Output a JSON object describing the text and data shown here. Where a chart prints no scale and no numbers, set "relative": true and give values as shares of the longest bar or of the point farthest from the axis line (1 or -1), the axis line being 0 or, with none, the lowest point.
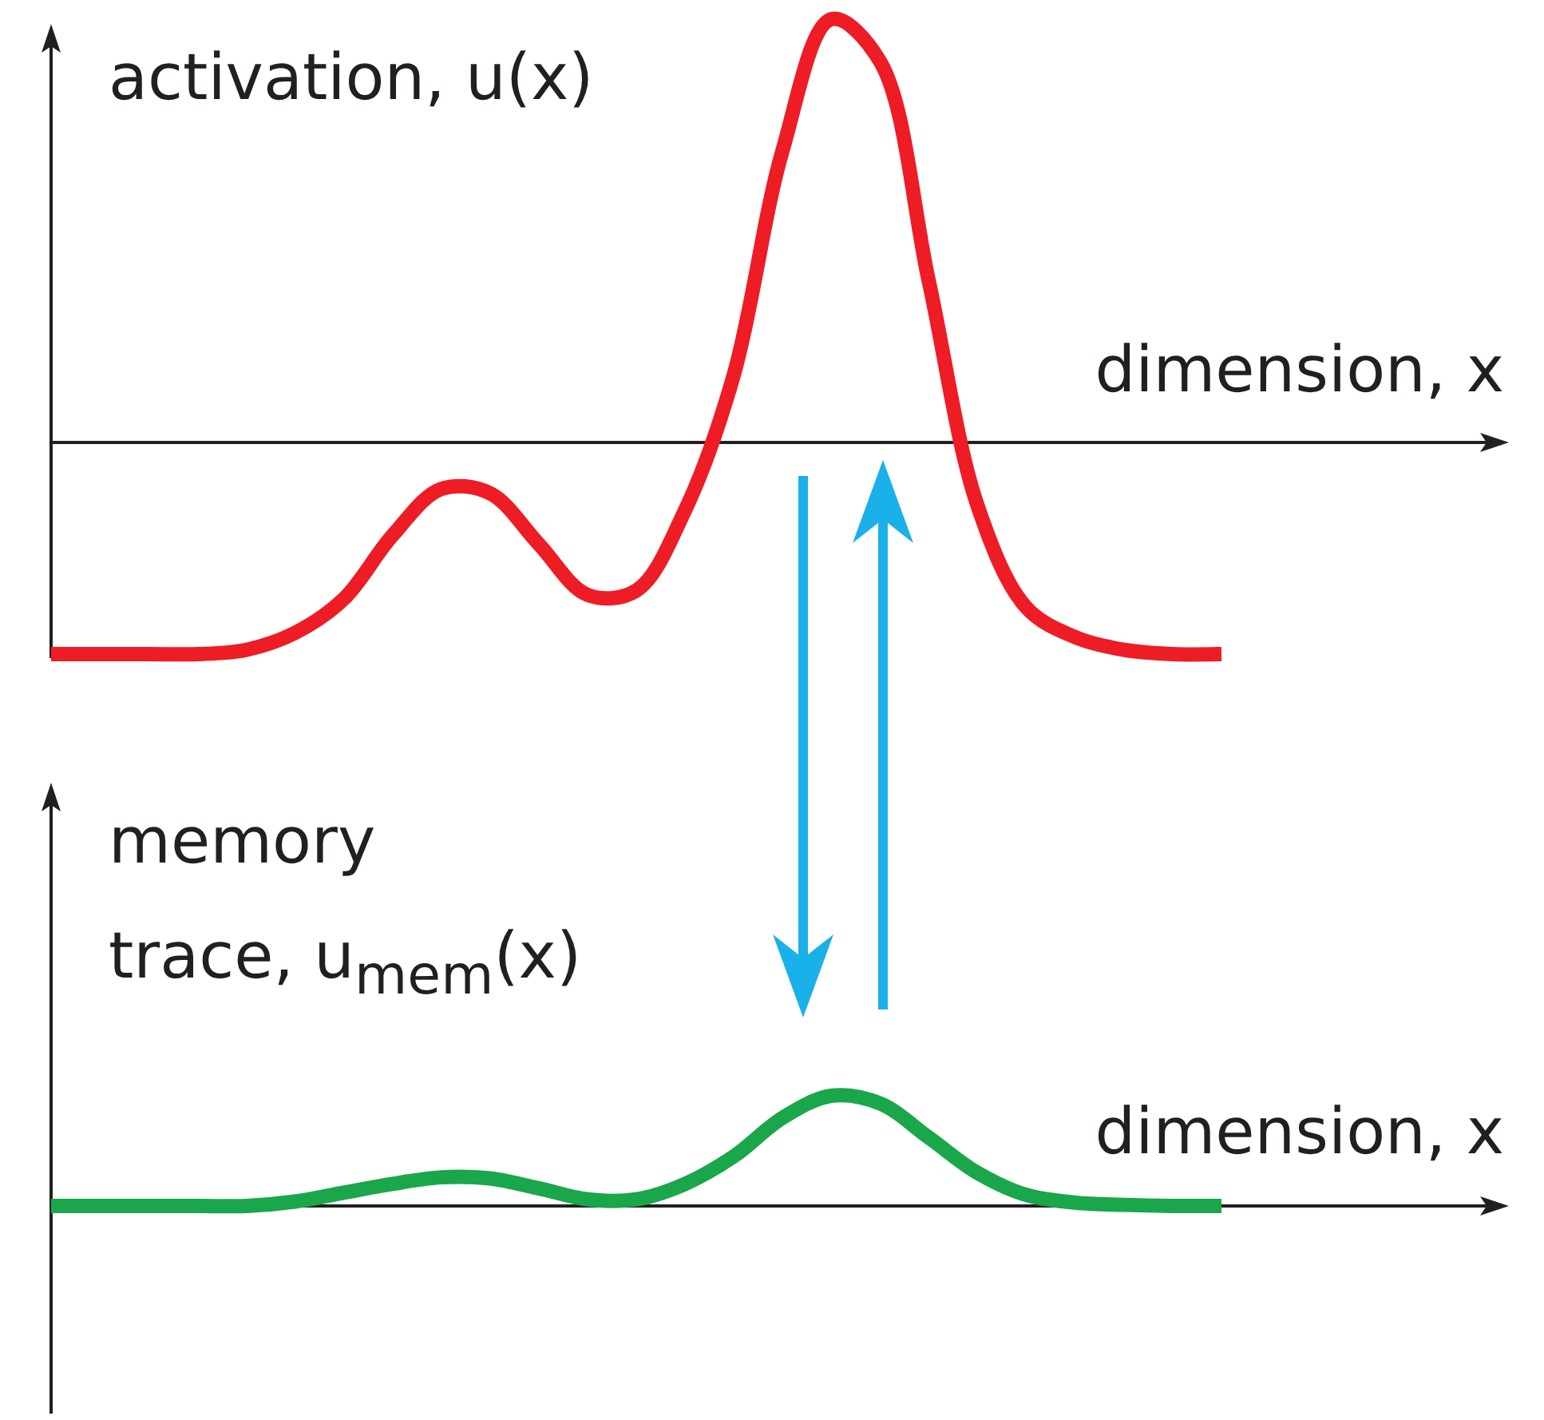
{
  "chart_data": [
    {
      "type": "line",
      "relative": true,
      "ylabel": "activation, u(x)",
      "xlabel": "dimension, x",
      "categories": [
        null,
        null,
        null,
        null,
        null,
        null,
        null,
        null,
        null,
        null,
        null,
        null,
        null,
        null,
        null,
        null,
        null,
        null,
        null,
        null,
        null,
        null,
        null,
        null,
        null
      ],
      "series": [
        {
          "color": "#ee1c25",
          "values": [
            -0.5,
            -0.5,
            -0.5,
            -0.5,
            -0.49,
            -0.45,
            -0.37,
            -0.22,
            -0.11,
            -0.12,
            -0.24,
            -0.36,
            -0.35,
            -0.16,
            0.16,
            0.69,
            1.0,
            0.9,
            0.38,
            -0.15,
            -0.39,
            -0.46,
            -0.49,
            -0.5,
            -0.5
          ]
        }
      ]
    },
    {
      "type": "line",
      "relative": true,
      "ylabel": "memory trace, u$_{mem}$(x)",
      "xlabel": "dimension, x",
      "categories": [
        null,
        null,
        null,
        null,
        null,
        null,
        null,
        null,
        null,
        null,
        null,
        null,
        null,
        null,
        null,
        null,
        null,
        null,
        null,
        null,
        null,
        null,
        null,
        null,
        null
      ],
      "series": [
        {
          "color": "#1aa64a",
          "values": [
            0,
            0,
            0,
            0,
            0,
            0.04,
            0.12,
            0.2,
            0.26,
            0.25,
            0.16,
            0.06,
            0.06,
            0.2,
            0.45,
            0.8,
            1.0,
            0.93,
            0.62,
            0.3,
            0.1,
            0.03,
            0.01,
            0,
            0
          ]
        }
      ]
    }
  ]
}
